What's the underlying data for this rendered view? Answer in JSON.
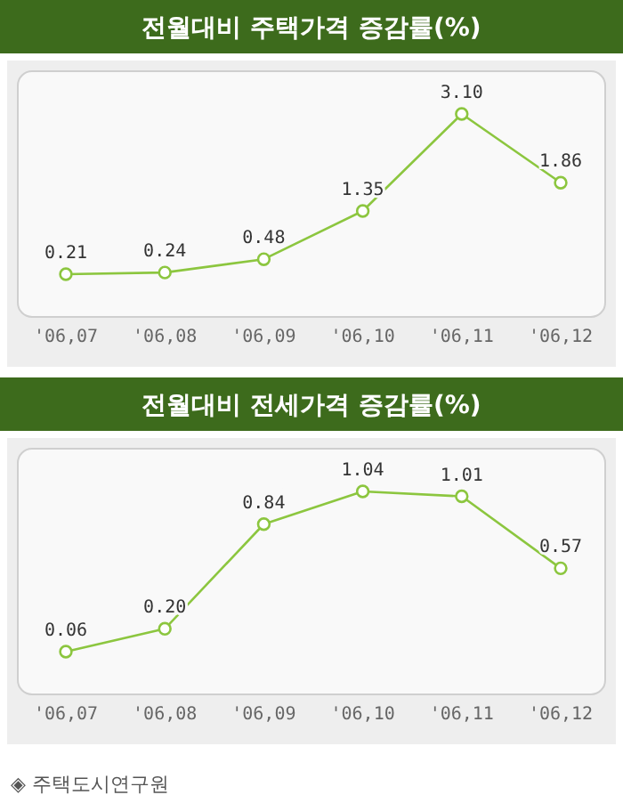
{
  "chart_data": [
    {
      "type": "line",
      "title": "전월대비 주택가격 증감률(%)",
      "categories": [
        "'06,07",
        "'06,08",
        "'06,09",
        "'06,10",
        "'06,11",
        "'06,12"
      ],
      "values": [
        0.21,
        0.24,
        0.48,
        1.35,
        3.1,
        1.86
      ],
      "value_labels": [
        "0.21",
        "0.24",
        "0.48",
        "1.35",
        "3.10",
        "1.86"
      ],
      "color": "#8cc63f",
      "marker": "circle"
    },
    {
      "type": "line",
      "title": "전월대비 전세가격 증감률(%)",
      "categories": [
        "'06,07",
        "'06,08",
        "'06,09",
        "'06,10",
        "'06,11",
        "'06,12"
      ],
      "values": [
        0.06,
        0.2,
        0.84,
        1.04,
        1.01,
        0.57
      ],
      "value_labels": [
        "0.06",
        "0.20",
        "0.84",
        "1.04",
        "1.01",
        "0.57"
      ],
      "color": "#8cc63f",
      "marker": "circle",
      "annotations": [
        "◈ 주택도시연구원"
      ]
    }
  ]
}
